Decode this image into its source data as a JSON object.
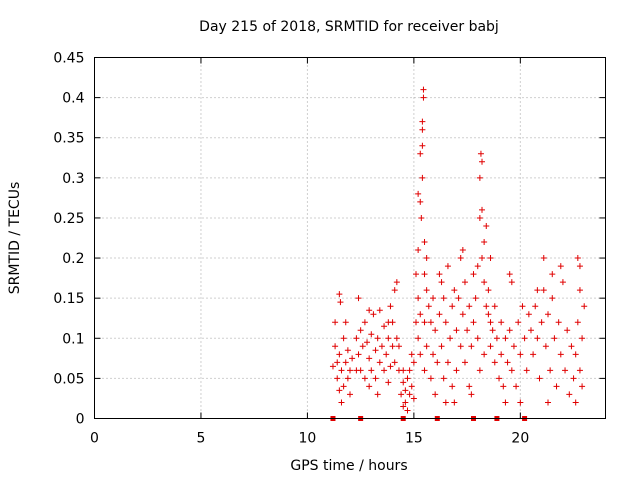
{
  "chart_data": {
    "type": "scatter",
    "title": "Day 215 of 2018, SRMTID for receiver babj",
    "xlabel": "GPS time / hours",
    "ylabel": "SRMTID / TECUs",
    "xlim": [
      0,
      24
    ],
    "ylim": [
      0,
      0.45
    ],
    "xticks": [
      0,
      5,
      10,
      15,
      20
    ],
    "xtick_labels": [
      "0",
      "5",
      "10",
      "15",
      "20"
    ],
    "yticks": [
      0,
      0.05,
      0.1,
      0.15,
      0.2,
      0.25,
      0.3,
      0.35,
      0.4,
      0.45
    ],
    "ytick_labels": [
      "0",
      "0.05",
      "0.1",
      "0.15",
      "0.2",
      "0.25",
      "0.3",
      "0.35",
      "0.4",
      "0.45"
    ],
    "grid": true,
    "marker": "+",
    "series": [
      {
        "name": "SRMTID",
        "color": "#e00000",
        "points": [
          [
            11.2,
            0.065
          ],
          [
            11.3,
            0.09
          ],
          [
            11.3,
            0.12
          ],
          [
            11.4,
            0.05
          ],
          [
            11.4,
            0.07
          ],
          [
            11.5,
            0.035
          ],
          [
            11.5,
            0.08
          ],
          [
            11.6,
            0.02
          ],
          [
            11.6,
            0.06
          ],
          [
            11.7,
            0.04
          ],
          [
            11.7,
            0.1
          ],
          [
            11.8,
            0.07
          ],
          [
            11.9,
            0.05
          ],
          [
            11.9,
            0.085
          ],
          [
            12.0,
            0.06
          ],
          [
            12.0,
            0.03
          ],
          [
            12.1,
            0.075
          ],
          [
            11.5,
            0.155
          ],
          [
            11.55,
            0.145
          ],
          [
            11.8,
            0.12
          ],
          [
            12.3,
            0.06
          ],
          [
            12.3,
            0.1
          ],
          [
            12.4,
            0.08
          ],
          [
            12.4,
            0.15
          ],
          [
            12.5,
            0.11
          ],
          [
            12.5,
            0.06
          ],
          [
            12.6,
            0.09
          ],
          [
            12.7,
            0.12
          ],
          [
            12.7,
            0.05
          ],
          [
            12.8,
            0.095
          ],
          [
            12.9,
            0.135
          ],
          [
            12.9,
            0.075
          ],
          [
            13.0,
            0.06
          ],
          [
            13.0,
            0.105
          ],
          [
            13.1,
            0.13
          ],
          [
            13.2,
            0.085
          ],
          [
            13.2,
            0.05
          ],
          [
            13.3,
            0.1
          ],
          [
            13.4,
            0.07
          ],
          [
            13.4,
            0.135
          ],
          [
            13.5,
            0.09
          ],
          [
            13.6,
            0.06
          ],
          [
            13.6,
            0.115
          ],
          [
            13.7,
            0.08
          ],
          [
            13.8,
            0.045
          ],
          [
            13.8,
            0.1
          ],
          [
            13.9,
            0.065
          ],
          [
            14.0,
            0.09
          ],
          [
            14.0,
            0.12
          ],
          [
            14.1,
            0.07
          ],
          [
            14.2,
            0.1
          ],
          [
            14.3,
            0.06
          ],
          [
            14.3,
            0.09
          ],
          [
            13.3,
            0.03
          ],
          [
            12.9,
            0.04
          ],
          [
            13.8,
            0.12
          ],
          [
            14.1,
            0.16
          ],
          [
            14.2,
            0.17
          ],
          [
            13.9,
            0.14
          ],
          [
            14.4,
            0.03
          ],
          [
            14.5,
            0.015
          ],
          [
            14.5,
            0.045
          ],
          [
            14.6,
            0.02
          ],
          [
            14.6,
            0.035
          ],
          [
            14.7,
            0.01
          ],
          [
            14.7,
            0.05
          ],
          [
            14.8,
            0.03
          ],
          [
            14.8,
            0.06
          ],
          [
            14.9,
            0.04
          ],
          [
            15.0,
            0.025
          ],
          [
            15.0,
            0.07
          ],
          [
            14.5,
            0.06
          ],
          [
            14.9,
            0.08
          ],
          [
            15.1,
            0.12
          ],
          [
            15.1,
            0.18
          ],
          [
            15.2,
            0.1
          ],
          [
            15.2,
            0.15
          ],
          [
            15.2,
            0.21
          ],
          [
            15.3,
            0.27
          ],
          [
            15.3,
            0.13
          ],
          [
            15.3,
            0.33
          ],
          [
            15.4,
            0.36
          ],
          [
            15.4,
            0.34
          ],
          [
            15.4,
            0.3
          ],
          [
            15.45,
            0.4
          ],
          [
            15.45,
            0.41
          ],
          [
            15.4,
            0.37
          ],
          [
            15.5,
            0.22
          ],
          [
            15.5,
            0.18
          ],
          [
            15.5,
            0.12
          ],
          [
            15.6,
            0.16
          ],
          [
            15.6,
            0.2
          ],
          [
            15.7,
            0.14
          ],
          [
            15.3,
            0.08
          ],
          [
            15.5,
            0.06
          ],
          [
            15.6,
            0.09
          ],
          [
            15.2,
            0.28
          ],
          [
            15.35,
            0.25
          ],
          [
            15.8,
            0.12
          ],
          [
            15.8,
            0.05
          ],
          [
            15.9,
            0.08
          ],
          [
            15.9,
            0.15
          ],
          [
            16.0,
            0.11
          ],
          [
            16.0,
            0.03
          ],
          [
            16.1,
            0.07
          ],
          [
            16.2,
            0.13
          ],
          [
            16.2,
            0.18
          ],
          [
            16.3,
            0.09
          ],
          [
            16.4,
            0.05
          ],
          [
            16.4,
            0.15
          ],
          [
            16.5,
            0.12
          ],
          [
            16.6,
            0.19
          ],
          [
            16.6,
            0.07
          ],
          [
            16.7,
            0.1
          ],
          [
            16.8,
            0.14
          ],
          [
            16.8,
            0.04
          ],
          [
            16.9,
            0.16
          ],
          [
            17.0,
            0.11
          ],
          [
            17.0,
            0.06
          ],
          [
            17.1,
            0.15
          ],
          [
            17.2,
            0.09
          ],
          [
            17.2,
            0.2
          ],
          [
            17.3,
            0.13
          ],
          [
            17.4,
            0.07
          ],
          [
            17.4,
            0.17
          ],
          [
            17.5,
            0.11
          ],
          [
            17.6,
            0.14
          ],
          [
            17.6,
            0.04
          ],
          [
            17.7,
            0.09
          ],
          [
            17.8,
            0.18
          ],
          [
            17.8,
            0.12
          ],
          [
            16.5,
            0.02
          ],
          [
            16.9,
            0.02
          ],
          [
            17.3,
            0.21
          ],
          [
            16.3,
            0.17
          ],
          [
            17.7,
            0.03
          ],
          [
            17.9,
            0.15
          ],
          [
            18.0,
            0.19
          ],
          [
            18.0,
            0.1
          ],
          [
            18.1,
            0.25
          ],
          [
            18.1,
            0.3
          ],
          [
            18.15,
            0.33
          ],
          [
            18.2,
            0.32
          ],
          [
            18.2,
            0.26
          ],
          [
            18.2,
            0.2
          ],
          [
            18.3,
            0.22
          ],
          [
            18.3,
            0.17
          ],
          [
            18.4,
            0.14
          ],
          [
            18.4,
            0.24
          ],
          [
            18.5,
            0.13
          ],
          [
            18.5,
            0.16
          ],
          [
            18.6,
            0.12
          ],
          [
            18.6,
            0.09
          ],
          [
            18.7,
            0.11
          ],
          [
            18.8,
            0.07
          ],
          [
            18.8,
            0.14
          ],
          [
            18.1,
            0.06
          ],
          [
            18.3,
            0.08
          ],
          [
            18.6,
            0.2
          ],
          [
            18.9,
            0.1
          ],
          [
            19.0,
            0.05
          ],
          [
            19.1,
            0.08
          ],
          [
            19.1,
            0.12
          ],
          [
            19.2,
            0.04
          ],
          [
            19.3,
            0.1
          ],
          [
            19.3,
            0.02
          ],
          [
            19.4,
            0.07
          ],
          [
            19.5,
            0.11
          ],
          [
            19.6,
            0.06
          ],
          [
            19.6,
            0.17
          ],
          [
            19.7,
            0.09
          ],
          [
            19.8,
            0.04
          ],
          [
            19.9,
            0.12
          ],
          [
            20.0,
            0.08
          ],
          [
            20.1,
            0.14
          ],
          [
            20.2,
            0.1
          ],
          [
            20.3,
            0.06
          ],
          [
            20.4,
            0.13
          ],
          [
            19.5,
            0.18
          ],
          [
            20.0,
            0.02
          ],
          [
            20.5,
            0.11
          ],
          [
            20.6,
            0.08
          ],
          [
            20.7,
            0.14
          ],
          [
            20.8,
            0.1
          ],
          [
            20.9,
            0.05
          ],
          [
            21.0,
            0.12
          ],
          [
            21.1,
            0.16
          ],
          [
            21.2,
            0.09
          ],
          [
            21.3,
            0.13
          ],
          [
            21.4,
            0.06
          ],
          [
            21.5,
            0.15
          ],
          [
            21.6,
            0.1
          ],
          [
            21.7,
            0.04
          ],
          [
            21.8,
            0.12
          ],
          [
            21.9,
            0.08
          ],
          [
            22.0,
            0.17
          ],
          [
            22.1,
            0.06
          ],
          [
            22.2,
            0.11
          ],
          [
            22.3,
            0.03
          ],
          [
            22.4,
            0.09
          ],
          [
            21.1,
            0.2
          ],
          [
            21.5,
            0.18
          ],
          [
            21.9,
            0.19
          ],
          [
            20.8,
            0.16
          ],
          [
            21.3,
            0.02
          ],
          [
            22.5,
            0.05
          ],
          [
            22.6,
            0.08
          ],
          [
            22.7,
            0.2
          ],
          [
            22.7,
            0.12
          ],
          [
            22.8,
            0.06
          ],
          [
            22.8,
            0.16
          ],
          [
            22.9,
            0.1
          ],
          [
            22.9,
            0.04
          ],
          [
            23.0,
            0.14
          ],
          [
            22.6,
            0.02
          ],
          [
            22.8,
            0.19
          ]
        ],
        "markers_at_zero": [
          11.2,
          12.5,
          14.5,
          16.1,
          17.8,
          18.9,
          20.2
        ]
      }
    ]
  }
}
